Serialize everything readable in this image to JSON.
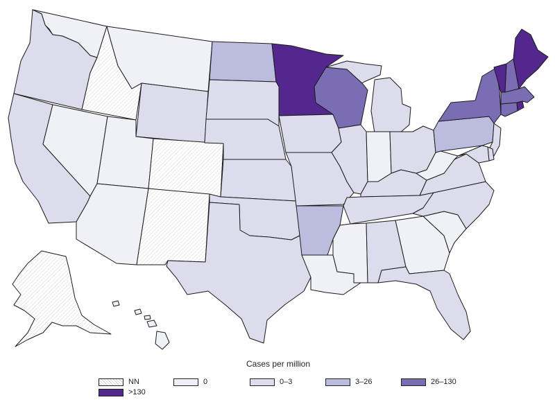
{
  "legend": {
    "title": "Cases per million",
    "items": [
      {
        "key": "nn",
        "label": "NN",
        "color": "#ffffff",
        "hatched": true
      },
      {
        "key": "c0",
        "label": "0",
        "color": "#f0f0f7",
        "hatched": false
      },
      {
        "key": "c1",
        "label": "0–3",
        "color": "#dcdcec",
        "hatched": false
      },
      {
        "key": "c2",
        "label": "3–26",
        "color": "#bcbcdf",
        "hatched": false
      },
      {
        "key": "c3",
        "label": "26–130",
        "color": "#7a6db3",
        "hatched": false
      },
      {
        "key": "c4",
        "label": ">130",
        "color": "#54278f",
        "hatched": false
      }
    ]
  },
  "states": [
    {
      "code": "WA",
      "category": "c0"
    },
    {
      "code": "OR",
      "category": "c1"
    },
    {
      "code": "CA",
      "category": "c1"
    },
    {
      "code": "ID",
      "category": "nn"
    },
    {
      "code": "NV",
      "category": "c0"
    },
    {
      "code": "MT",
      "category": "c0"
    },
    {
      "code": "WY",
      "category": "c1"
    },
    {
      "code": "UT",
      "category": "c0"
    },
    {
      "code": "CO",
      "category": "nn"
    },
    {
      "code": "AZ",
      "category": "c0"
    },
    {
      "code": "NM",
      "category": "nn"
    },
    {
      "code": "ND",
      "category": "c2"
    },
    {
      "code": "SD",
      "category": "c1"
    },
    {
      "code": "NE",
      "category": "c1"
    },
    {
      "code": "KS",
      "category": "c1"
    },
    {
      "code": "OK",
      "category": "c1"
    },
    {
      "code": "TX",
      "category": "c1"
    },
    {
      "code": "MN",
      "category": "c4"
    },
    {
      "code": "IA",
      "category": "c1"
    },
    {
      "code": "MO",
      "category": "c1"
    },
    {
      "code": "AR",
      "category": "c2"
    },
    {
      "code": "LA",
      "category": "c0"
    },
    {
      "code": "WI",
      "category": "c3"
    },
    {
      "code": "IL",
      "category": "c1"
    },
    {
      "code": "MI",
      "category": "c1"
    },
    {
      "code": "IN",
      "category": "c0"
    },
    {
      "code": "OH",
      "category": "c1"
    },
    {
      "code": "KY",
      "category": "c1"
    },
    {
      "code": "TN",
      "category": "c1"
    },
    {
      "code": "MS",
      "category": "c0"
    },
    {
      "code": "AL",
      "category": "c1"
    },
    {
      "code": "GA",
      "category": "c0"
    },
    {
      "code": "FL",
      "category": "c1"
    },
    {
      "code": "SC",
      "category": "c0"
    },
    {
      "code": "NC",
      "category": "c1"
    },
    {
      "code": "VA",
      "category": "c1"
    },
    {
      "code": "WV",
      "category": "c0"
    },
    {
      "code": "PA",
      "category": "c2"
    },
    {
      "code": "NY",
      "category": "c3"
    },
    {
      "code": "NJ",
      "category": "c1"
    },
    {
      "code": "DE",
      "category": "c1"
    },
    {
      "code": "MD",
      "category": "c1"
    },
    {
      "code": "CT",
      "category": "c3"
    },
    {
      "code": "RI",
      "category": "c4"
    },
    {
      "code": "MA",
      "category": "c3"
    },
    {
      "code": "VT",
      "category": "c4"
    },
    {
      "code": "NH",
      "category": "c3"
    },
    {
      "code": "ME",
      "category": "c4"
    },
    {
      "code": "AK",
      "category": "nn"
    },
    {
      "code": "HI",
      "category": "c0"
    }
  ]
}
